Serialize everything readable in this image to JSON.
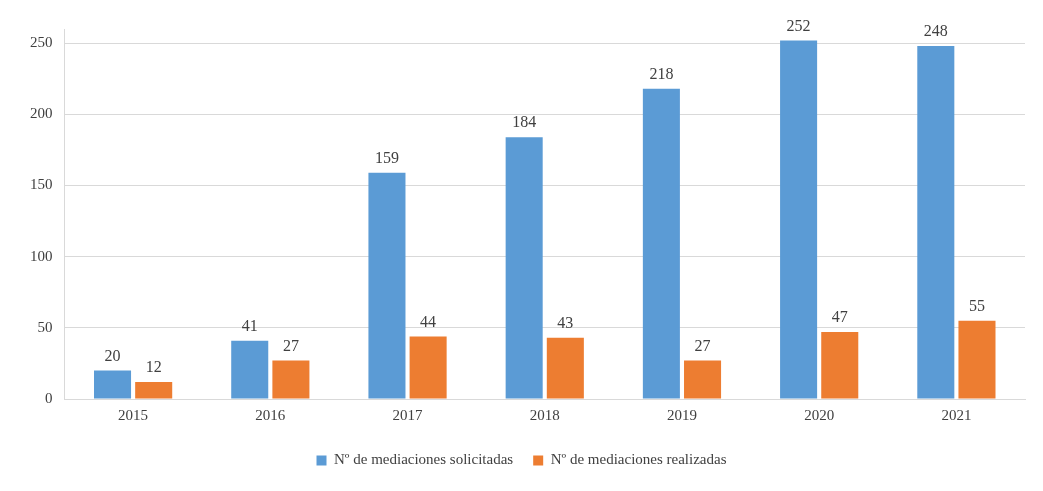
{
  "chart_data": {
    "type": "bar",
    "categories": [
      "2015",
      "2016",
      "2017",
      "2018",
      "2019",
      "2020",
      "2021"
    ],
    "series": [
      {
        "name": "Nº de mediaciones solicitadas",
        "color": "#5b9bd5",
        "values": [
          20,
          41,
          159,
          184,
          218,
          252,
          248
        ]
      },
      {
        "name": "Nº de mediaciones realizadas",
        "color": "#ed7d31",
        "values": [
          12,
          27,
          44,
          43,
          27,
          47,
          55
        ]
      }
    ],
    "ylim": [
      0,
      260
    ],
    "yticks": [
      0,
      50,
      100,
      150,
      200,
      250
    ],
    "grid": "y",
    "legend": "bottom",
    "data_labels": true
  }
}
